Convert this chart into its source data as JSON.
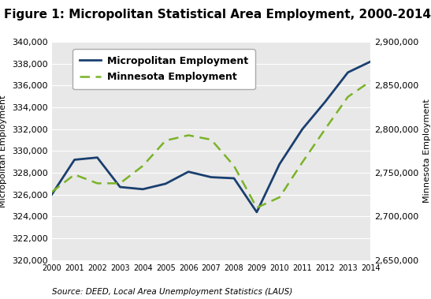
{
  "title": "Figure 1: Micropolitan Statistical Area Employment, 2000-2014",
  "source": "Source: DEED, Local Area Unemployment Statistics (LAUS)",
  "years": [
    2000,
    2001,
    2002,
    2003,
    2004,
    2005,
    2006,
    2007,
    2008,
    2009,
    2010,
    2011,
    2012,
    2013,
    2014
  ],
  "micropolitan": [
    326000,
    329200,
    329400,
    326700,
    326500,
    327000,
    328100,
    327600,
    327500,
    324400,
    328800,
    332000,
    334500,
    337200,
    338200
  ],
  "minnesota": [
    2728000,
    2748000,
    2738000,
    2738000,
    2758000,
    2787000,
    2793000,
    2788000,
    2758000,
    2710000,
    2722000,
    2762000,
    2800000,
    2837000,
    2855000
  ],
  "micro_color": "#1a3f6f",
  "mn_color": "#7ab327",
  "ylabel_left": "Micropolitan Employment",
  "ylabel_right": "Minnesota Employment",
  "ylim_left": [
    320000,
    340000
  ],
  "ylim_right": [
    2650000,
    2900000
  ],
  "yticks_left": [
    320000,
    322000,
    324000,
    326000,
    328000,
    330000,
    332000,
    334000,
    336000,
    338000,
    340000
  ],
  "yticks_right": [
    2650000,
    2700000,
    2750000,
    2800000,
    2850000,
    2900000
  ],
  "legend_micro": "Micropolitan Employment",
  "legend_mn": "Minnesota Employment",
  "plot_bg_color": "#e8e8e8",
  "fig_bg": "#ffffff",
  "grid_color": "#ffffff",
  "title_fontsize": 11,
  "axis_label_fontsize": 8,
  "tick_fontsize": 8,
  "legend_fontsize": 9
}
